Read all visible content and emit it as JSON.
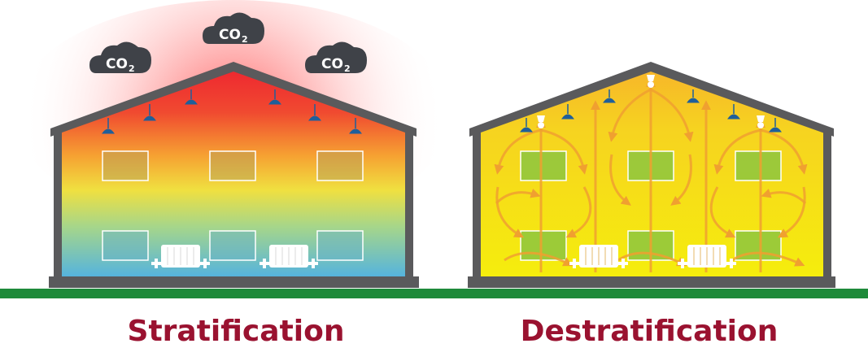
{
  "panels": [
    {
      "caption": "Stratification",
      "clouds": [
        {
          "main": "CO",
          "sub": "2"
        },
        {
          "main": "CO",
          "sub": "2"
        },
        {
          "main": "CO",
          "sub": "2"
        }
      ]
    },
    {
      "caption": "Destratification"
    }
  ],
  "colors": {
    "wall": "#5a5a5c",
    "ground": "#1e8a3a",
    "caption": "#9a1230",
    "cloud": "#3f4248",
    "lamp": "#1f5f9a",
    "hot": "#ef2b2b",
    "cold": "#58b2e0",
    "warm": "#f6ea10",
    "arrow": "#f0a030"
  }
}
